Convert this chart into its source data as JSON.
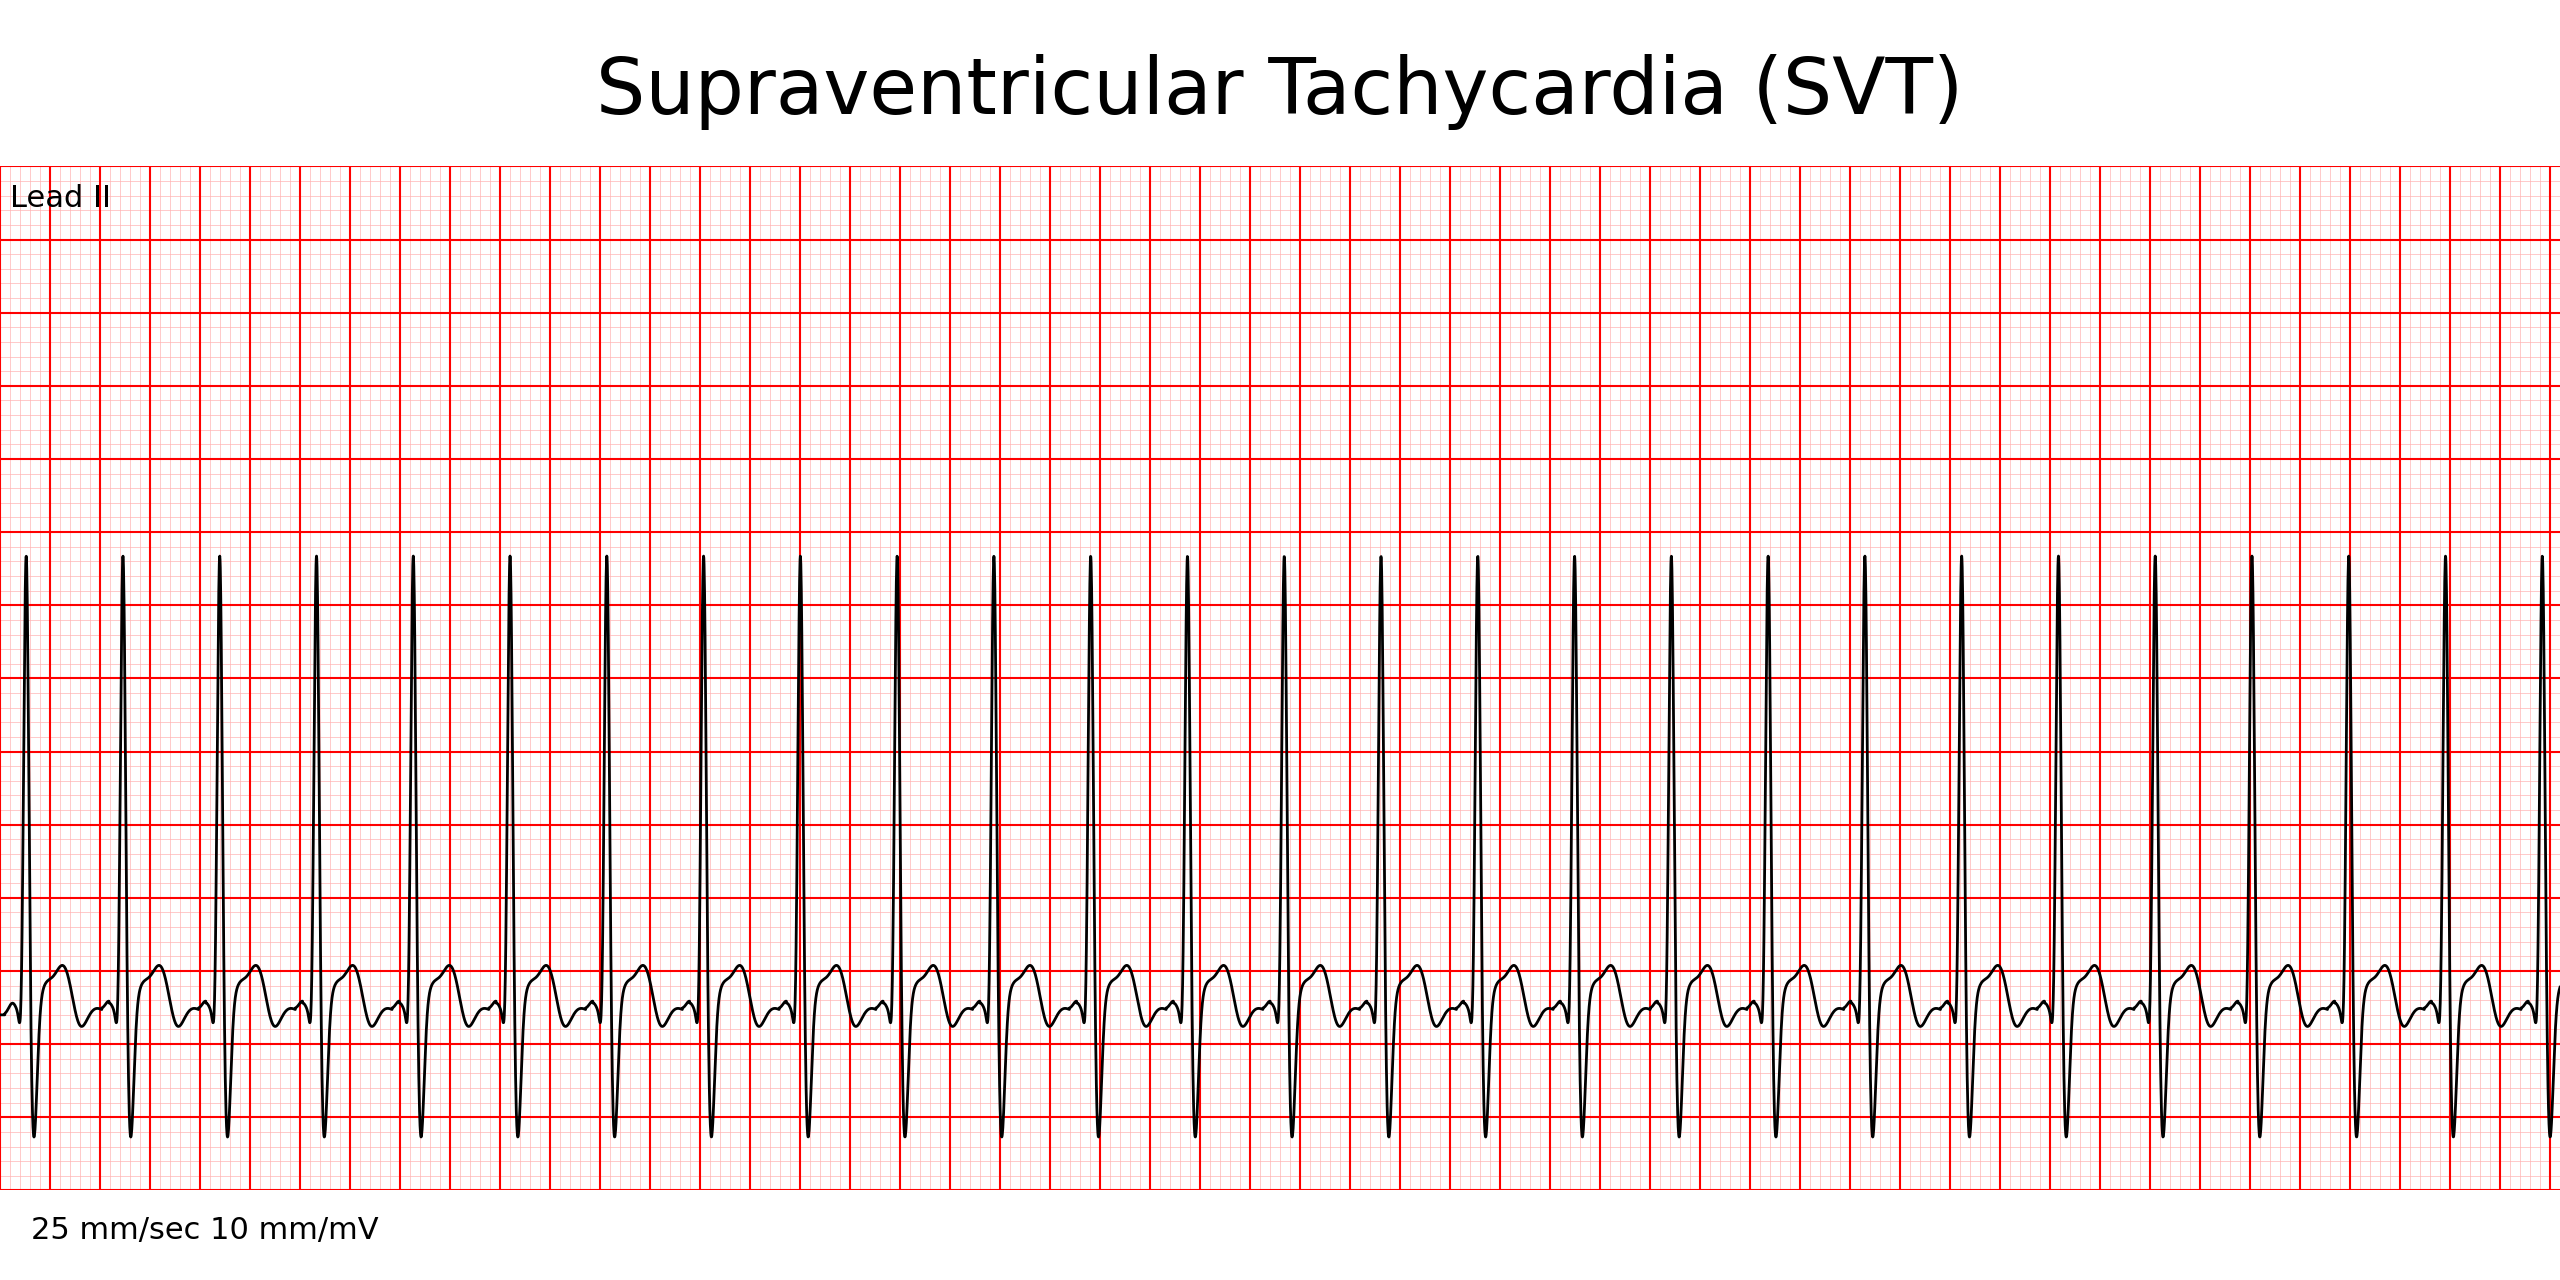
{
  "title": "Supraventricular Tachycardia (SVT)",
  "lead_label": "Lead II",
  "speed_label": "25 mm/sec 10 mm/mV",
  "background_color": "#ffffff",
  "grid_minor_color": "#ffb3b3",
  "grid_major_color": "#ff0000",
  "ecg_color": "#000000",
  "title_fontsize": 56,
  "label_fontsize": 22,
  "heart_rate_bpm": 155,
  "duration_sec": 10.24,
  "sample_rate": 1000,
  "xlim": [
    0,
    10.24
  ],
  "ylim": [
    -2.0,
    5.0
  ],
  "baseline": -0.8,
  "r_amplitude": 3.2,
  "minor_x_step": 0.04,
  "minor_y_step": 0.1,
  "major_x_step": 0.2,
  "major_y_step": 0.5,
  "minor_lw": 0.5,
  "major_lw": 1.5,
  "ecg_lw": 2.0,
  "title_weight": "normal",
  "ecg_area_top": 0.86,
  "ecg_area_height": 0.79
}
